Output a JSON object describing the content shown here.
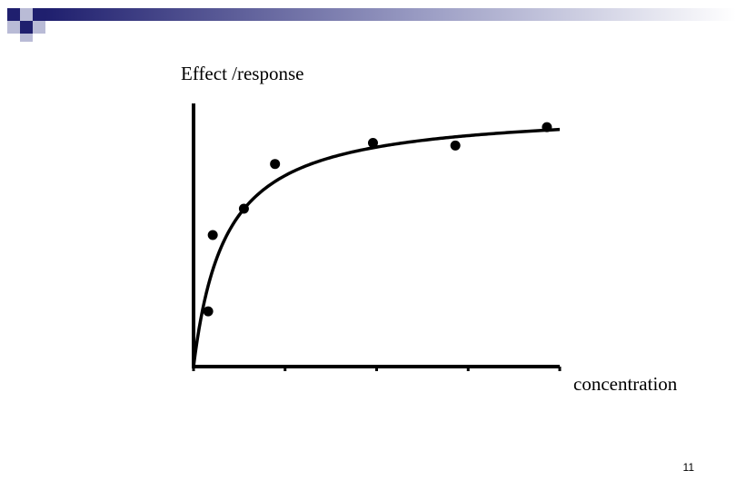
{
  "slide": {
    "number": "11",
    "accent_dark": "#1f1f6e",
    "accent_light": "#b9bbd6"
  },
  "chart_data": {
    "type": "scatter",
    "title": "",
    "xlabel": "concentration",
    "ylabel": "Effect /response",
    "xlim": [
      0,
      4
    ],
    "ylim": [
      0,
      10
    ],
    "x_ticks": [
      0,
      1,
      2,
      3,
      4
    ],
    "tick_labels_shown": false,
    "grid": false,
    "series": [
      {
        "kind": "points",
        "x": [
          0.16,
          0.21,
          0.55,
          0.89,
          1.96,
          2.86,
          3.86
        ],
        "y": [
          2.1,
          5.0,
          6.0,
          7.7,
          8.5,
          8.4,
          9.1
        ]
      },
      {
        "kind": "fitted-curve",
        "model": "hyperbolic saturation",
        "emax": 9.8,
        "ec50": 0.35,
        "x_range": [
          0,
          4
        ]
      }
    ]
  }
}
